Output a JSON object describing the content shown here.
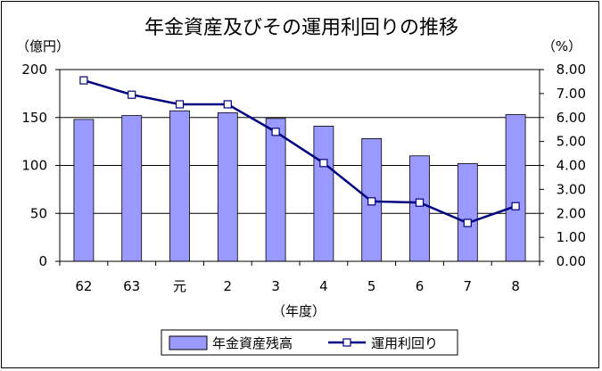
{
  "chart_data": {
    "type": "bar",
    "title": "年金資産及びその運用利回りの推移",
    "categories": [
      "62",
      "63",
      "元",
      "2",
      "3",
      "4",
      "5",
      "6",
      "7",
      "8"
    ],
    "xlabel": "（年度）",
    "y_left_label": "（億円）",
    "y_right_label": "（%）",
    "y_left_lim": [
      0,
      200
    ],
    "y_left_ticks": [
      "0",
      "50",
      "100",
      "150",
      "200"
    ],
    "y_right_lim": [
      0,
      8
    ],
    "y_right_ticks": [
      "0.00",
      "1.00",
      "2.00",
      "3.00",
      "4.00",
      "5.00",
      "6.00",
      "7.00",
      "8.00"
    ],
    "grid": true,
    "legend_position": "bottom",
    "series": [
      {
        "name": "年金資産残高",
        "type": "bar",
        "axis": "left",
        "color": "#9999ff",
        "values": [
          148,
          152,
          157,
          155,
          149,
          141,
          128,
          110,
          102,
          153
        ]
      },
      {
        "name": "運用利回り",
        "type": "line",
        "axis": "right",
        "color": "#000080",
        "values": [
          7.55,
          6.95,
          6.55,
          6.55,
          5.4,
          4.1,
          2.5,
          2.45,
          1.6,
          2.3
        ]
      }
    ]
  }
}
